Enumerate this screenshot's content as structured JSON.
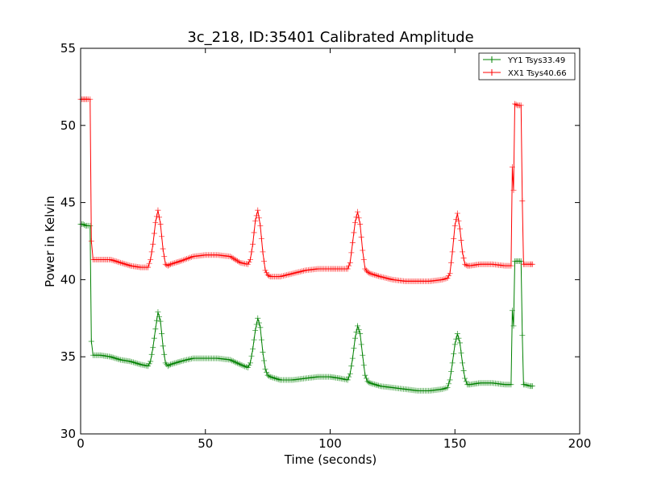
{
  "chart_data": {
    "type": "line",
    "title": "3c_218, ID:35401 Calibrated Amplitude",
    "xlabel": "Time (seconds)",
    "ylabel": "Power in Kelvin",
    "xlim": [
      0,
      200
    ],
    "ylim": [
      30,
      55
    ],
    "xticks": [
      "0",
      "50",
      "100",
      "150",
      "200"
    ],
    "yticks": [
      "30",
      "35",
      "40",
      "45",
      "50",
      "55"
    ],
    "grid": false,
    "legend_position": "top-right",
    "series": [
      {
        "name": "YY1 Tsys33.49",
        "color": "#008000",
        "marker": "+",
        "x": [
          0,
          1,
          2,
          3,
          3.8,
          4.3,
          5,
          8,
          12,
          16,
          20,
          24,
          27,
          28,
          29,
          30,
          31,
          32,
          33,
          34,
          35,
          36,
          40,
          45,
          50,
          55,
          60,
          64,
          67,
          68,
          69,
          70,
          71,
          72,
          73,
          74,
          75,
          76,
          80,
          85,
          90,
          95,
          100,
          104,
          107,
          108,
          109,
          110,
          111,
          112,
          113,
          114,
          115,
          116,
          120,
          125,
          130,
          135,
          140,
          145,
          147,
          148,
          149,
          150,
          151,
          152,
          153,
          154,
          155,
          156,
          160,
          165,
          170,
          172.5,
          173,
          173.5,
          174,
          175,
          176.5,
          177,
          177.5,
          178,
          180,
          181
        ],
        "values": [
          43.6,
          43.6,
          43.5,
          43.5,
          43.5,
          36.0,
          35.1,
          35.1,
          35.0,
          34.8,
          34.7,
          34.5,
          34.4,
          34.7,
          35.6,
          36.8,
          37.9,
          37.3,
          35.7,
          34.6,
          34.4,
          34.5,
          34.7,
          34.9,
          34.9,
          34.9,
          34.8,
          34.5,
          34.3,
          34.6,
          35.5,
          36.7,
          37.5,
          36.9,
          35.3,
          34.2,
          33.8,
          33.7,
          33.5,
          33.5,
          33.6,
          33.7,
          33.7,
          33.6,
          33.5,
          33.9,
          34.9,
          36.2,
          37.0,
          36.5,
          35.1,
          33.8,
          33.4,
          33.3,
          33.1,
          33.0,
          32.9,
          32.8,
          32.8,
          32.9,
          33.0,
          33.5,
          34.6,
          35.8,
          36.5,
          35.9,
          34.6,
          33.6,
          33.2,
          33.2,
          33.3,
          33.3,
          33.2,
          33.2,
          38.0,
          37.0,
          41.2,
          41.2,
          41.2,
          36.4,
          33.2,
          33.2,
          33.1,
          33.1
        ]
      },
      {
        "name": "XX1 Tsys40.66",
        "color": "#ff0000",
        "marker": "+",
        "x": [
          0,
          1,
          2,
          3,
          3.8,
          4.3,
          5,
          8,
          12,
          16,
          20,
          24,
          27,
          28,
          29,
          30,
          31,
          32,
          33,
          34,
          35,
          36,
          40,
          45,
          50,
          55,
          60,
          64,
          67,
          68,
          69,
          70,
          71,
          72,
          73,
          74,
          75,
          76,
          80,
          85,
          90,
          95,
          100,
          104,
          107,
          108,
          109,
          110,
          111,
          112,
          113,
          114,
          115,
          116,
          120,
          125,
          130,
          135,
          140,
          145,
          147,
          148,
          149,
          150,
          151,
          152,
          153,
          154,
          155,
          156,
          160,
          165,
          170,
          172.5,
          173,
          173.5,
          174,
          175,
          176.5,
          177,
          177.5,
          178,
          180,
          181
        ],
        "values": [
          51.7,
          51.7,
          51.7,
          51.7,
          51.7,
          42.5,
          41.3,
          41.3,
          41.3,
          41.1,
          40.9,
          40.8,
          40.8,
          41.3,
          42.3,
          43.7,
          44.5,
          43.6,
          42.0,
          41.0,
          40.9,
          41.0,
          41.2,
          41.5,
          41.6,
          41.6,
          41.5,
          41.1,
          41.0,
          41.3,
          42.3,
          43.8,
          44.5,
          43.5,
          41.8,
          40.6,
          40.3,
          40.2,
          40.2,
          40.4,
          40.6,
          40.7,
          40.7,
          40.7,
          40.7,
          41.1,
          42.4,
          43.7,
          44.4,
          43.6,
          41.9,
          40.7,
          40.5,
          40.4,
          40.2,
          40.0,
          39.9,
          39.9,
          39.9,
          40.0,
          40.1,
          40.4,
          41.8,
          43.5,
          44.3,
          43.3,
          41.8,
          41.0,
          40.9,
          40.9,
          41.0,
          41.0,
          40.9,
          40.9,
          47.3,
          45.8,
          51.4,
          51.3,
          51.3,
          45.1,
          41.0,
          41.0,
          41.0,
          41.0
        ]
      }
    ]
  }
}
